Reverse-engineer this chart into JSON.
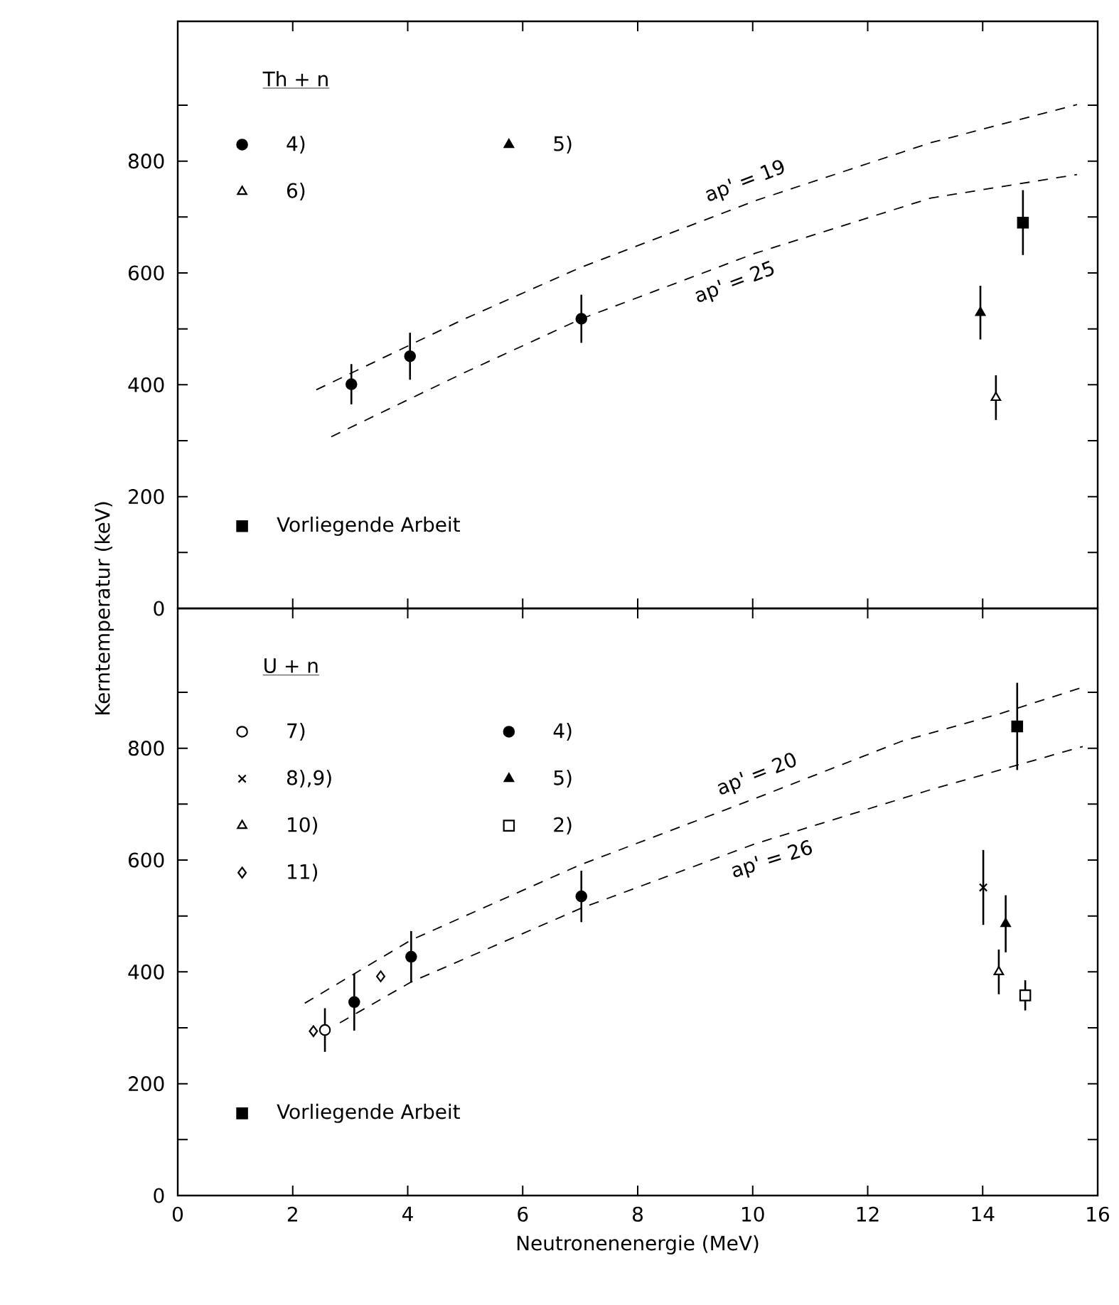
{
  "chart_data": [
    {
      "type": "scatter",
      "ylabel": "Kerntemperatur (keV)",
      "legend_title": "Th + n",
      "legend": "left",
      "tick_labels": "y",
      "xlim": [
        0,
        16
      ],
      "xticks": [
        0,
        2,
        4,
        6,
        8,
        10,
        12,
        14,
        16
      ],
      "ylim": [
        0,
        1050
      ],
      "yticks": [
        0,
        {
          "value": 100,
          "label": null
        },
        200,
        {
          "value": 300,
          "label": null
        },
        400,
        {
          "value": 500,
          "label": null
        },
        600,
        {
          "value": 700,
          "label": null
        },
        800,
        {
          "value": 900,
          "label": null
        }
      ],
      "series": [
        {
          "name": "4)",
          "color": "#000000",
          "marker": "circle",
          "x": [
            3.02,
            4.04,
            7.02
          ],
          "values": [
            401,
            451,
            518
          ],
          "errors": [
            36,
            42,
            43
          ]
        },
        {
          "name": "6)",
          "color": "#ffffff",
          "marker": "triangle",
          "x": [
            14.23
          ],
          "values": [
            377
          ],
          "errors": [
            40
          ]
        },
        {
          "name": "5)",
          "color": "#000000",
          "marker": "triangle",
          "x": [
            13.96
          ],
          "values": [
            529
          ],
          "errors": [
            48
          ]
        },
        {
          "name": "Vorliegende Arbeit",
          "color": "#000000",
          "marker": "square",
          "x": [
            14.7
          ],
          "values": [
            690
          ],
          "errors": [
            58
          ]
        },
        {
          "name": "ap' = 19",
          "type": "line",
          "line_style": "dashed",
          "marker": "none",
          "color": "#000000",
          "x": [
            2.41,
            4.95,
            6.99,
            10.04,
            13.1,
            15.64
          ],
          "values": [
            391,
            516,
            609,
            729,
            833,
            901
          ]
        },
        {
          "name": "ap' = 25",
          "type": "line",
          "line_style": "dashed",
          "marker": "none",
          "color": "#000000",
          "x": [
            2.67,
            4.95,
            7.02,
            10.04,
            13.1,
            15.64
          ],
          "values": [
            307,
            420,
            518,
            635,
            734,
            776
          ]
        }
      ]
    },
    {
      "type": "scatter",
      "xlabel": "Neutronenenergie (MeV)",
      "legend_title": "U + n",
      "legend": "left",
      "xlim": [
        0,
        16
      ],
      "xticks": [
        0,
        2,
        4,
        6,
        8,
        10,
        12,
        14,
        16
      ],
      "ylim": [
        0,
        1050
      ],
      "yticks": [
        0,
        {
          "value": 100,
          "label": null
        },
        200,
        {
          "value": 300,
          "label": null
        },
        400,
        {
          "value": 500,
          "label": null
        },
        600,
        {
          "value": 700,
          "label": null
        },
        800,
        {
          "value": 900,
          "label": null
        }
      ],
      "series": [
        {
          "name": "7)",
          "color": "#ffffff",
          "marker": "circle",
          "x": [
            2.56
          ],
          "values": [
            296
          ],
          "errors": [
            39
          ]
        },
        {
          "name": "8),9)",
          "color": "#000000",
          "marker": "cross",
          "x": [
            14.01
          ],
          "values": [
            551
          ],
          "errors": [
            67
          ]
        },
        {
          "name": "10)",
          "color": "#ffffff",
          "marker": "triangle",
          "x": [
            14.28
          ],
          "values": [
            400
          ],
          "errors": [
            40
          ]
        },
        {
          "name": "11)",
          "color": "#ffffff",
          "marker": "diamond",
          "x": [
            2.36,
            3.53
          ],
          "values": [
            294,
            392
          ]
        },
        {
          "name": "4)",
          "color": "#000000",
          "marker": "circle",
          "x": [
            3.07,
            4.06,
            7.02
          ],
          "values": [
            346,
            427,
            535
          ],
          "errors": [
            51,
            46,
            46
          ]
        },
        {
          "name": "5)",
          "color": "#000000",
          "marker": "triangle",
          "x": [
            14.4
          ],
          "values": [
            486
          ],
          "errors": [
            51
          ]
        },
        {
          "name": "2)",
          "color": "#ffffff",
          "marker": "square",
          "x": [
            14.74
          ],
          "values": [
            358
          ],
          "errors": [
            27
          ]
        },
        {
          "name": "Vorliegende Arbeit",
          "color": "#000000",
          "marker": "square",
          "x": [
            14.6
          ],
          "values": [
            839
          ],
          "errors": [
            78
          ]
        },
        {
          "name": "ap' = 20",
          "type": "line",
          "line_style": "dashed",
          "marker": "none",
          "color": "#000000",
          "x": [
            2.21,
            4.06,
            6.99,
            10.04,
            12.58,
            14.31,
            15.74
          ],
          "values": [
            344,
            457,
            591,
            710,
            812,
            862,
            909
          ]
        },
        {
          "name": "ap' = 26",
          "type": "line",
          "line_style": "dashed",
          "marker": "none",
          "color": "#000000",
          "x": [
            2.82,
            4.06,
            7.02,
            10.04,
            13.1,
            15.74
          ],
          "values": [
            309,
            382,
            514,
            629,
            726,
            803
          ]
        }
      ]
    }
  ]
}
